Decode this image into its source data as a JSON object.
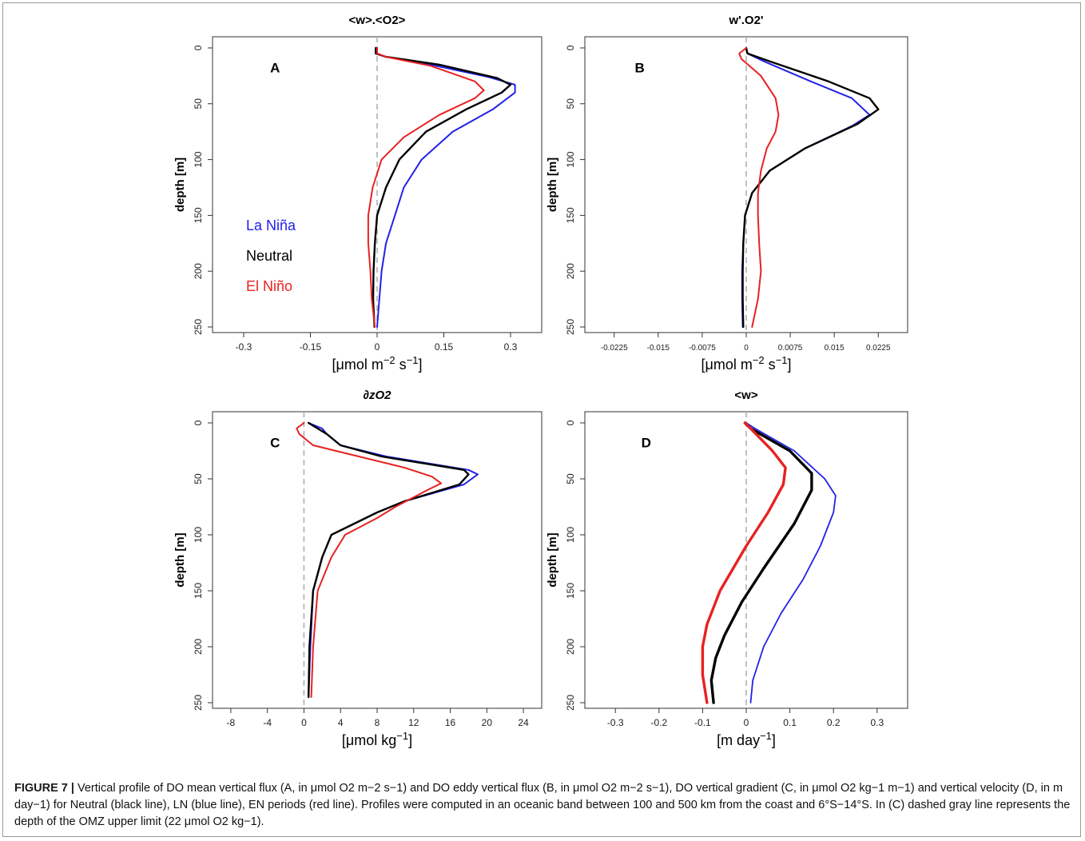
{
  "caption": {
    "label": "FIGURE 7 |",
    "text": "Vertical profile of DO mean vertical flux (A, in μmol O2 m−2 s−1) and DO eddy vertical flux (B, in μmol O2 m−2 s−1), DO vertical gradient (C, in μmol O2 kg−1 m−1) and vertical velocity (D, in m day−1) for Neutral (black line), LN (blue line), EN periods (red line). Profiles were computed in an oceanic band between 100 and 500 km from the coast and 6°S−14°S. In (C) dashed gray line represents the depth of the OMZ upper limit (22 μmol O2 kg−1)."
  },
  "colors": {
    "neutral": "#000000",
    "la_nina": "#2121e8",
    "el_nino": "#e82121",
    "zero_line": "#b0b0b0"
  },
  "chart_data": [
    {
      "type": "line",
      "panel": "A",
      "title": "<w>.<O2>",
      "xlabel": "[μmol m-2 s-1]",
      "ylabel": "depth [m]",
      "xlim": [
        -0.37,
        0.37
      ],
      "ylim": [
        255,
        -10
      ],
      "xticks": [
        -0.3,
        -0.15,
        0,
        0.15,
        0.3
      ],
      "xtick_labels": [
        "-0.3",
        "-0.15",
        "0",
        "0.15",
        "0.3"
      ],
      "yticks": [
        0,
        50,
        100,
        150,
        200,
        250
      ],
      "ytick_labels": [
        "0",
        "50",
        "100",
        "150",
        "200",
        "250"
      ],
      "legend": {
        "position": "lower-left",
        "entries": [
          "La Niña",
          "Neutral",
          "El Niño"
        ]
      },
      "series": [
        {
          "name": "La Niña",
          "color_key": "la_nina",
          "x": [
            0.0,
            0.0,
            0.02,
            0.12,
            0.25,
            0.31,
            0.31,
            0.26,
            0.17,
            0.1,
            0.06,
            0.04,
            0.02,
            0.01,
            0.005,
            0.0
          ],
          "y": [
            0,
            5,
            8,
            15,
            26,
            33,
            40,
            55,
            75,
            100,
            125,
            150,
            175,
            200,
            225,
            250
          ]
        },
        {
          "name": "Neutral",
          "color_key": "neutral",
          "x": [
            -0.003,
            -0.003,
            0.02,
            0.14,
            0.27,
            0.3,
            0.28,
            0.2,
            0.11,
            0.05,
            0.02,
            0.0,
            -0.005,
            -0.008,
            -0.009,
            -0.006
          ],
          "y": [
            0,
            5,
            8,
            15,
            27,
            33,
            40,
            55,
            75,
            100,
            125,
            150,
            175,
            200,
            225,
            250
          ]
        },
        {
          "name": "El Niño",
          "color_key": "el_nino",
          "x": [
            0.0,
            0.0,
            0.02,
            0.12,
            0.22,
            0.24,
            0.22,
            0.14,
            0.06,
            0.01,
            -0.01,
            -0.02,
            -0.02,
            -0.015,
            -0.012,
            -0.005
          ],
          "y": [
            0,
            5,
            8,
            16,
            30,
            38,
            45,
            60,
            80,
            100,
            125,
            150,
            175,
            200,
            225,
            250
          ]
        }
      ]
    },
    {
      "type": "line",
      "panel": "B",
      "title": "w'.O2'",
      "xlabel": "[μmol m-2 s-1]",
      "ylabel": "depth [m]",
      "xlim": [
        -0.0275,
        0.0275
      ],
      "ylim": [
        255,
        -10
      ],
      "xticks": [
        -0.0225,
        -0.015,
        -0.0075,
        0,
        0.0075,
        0.015,
        0.0225
      ],
      "xtick_labels": [
        "-0.0225",
        "-0.015",
        "-0.0075",
        "0",
        "0.0075",
        "0.015",
        "0.0225"
      ],
      "yticks": [
        0,
        50,
        100,
        150,
        200,
        250
      ],
      "ytick_labels": [
        "0",
        "50",
        "100",
        "150",
        "200",
        "250"
      ],
      "series": [
        {
          "name": "La Niña",
          "color_key": "la_nina",
          "x": [
            0.0,
            0.0002,
            0.003,
            0.011,
            0.018,
            0.021,
            0.018,
            0.01,
            0.004,
            0.001,
            -0.0002,
            -0.0005,
            -0.0007,
            -0.0007,
            -0.0006
          ],
          "y": [
            0,
            5,
            12,
            30,
            45,
            60,
            70,
            90,
            110,
            130,
            150,
            175,
            200,
            225,
            250
          ]
        },
        {
          "name": "Neutral",
          "color_key": "neutral",
          "x": [
            0.0,
            0.0002,
            0.004,
            0.014,
            0.021,
            0.0225,
            0.019,
            0.01,
            0.004,
            0.001,
            -0.0002,
            -0.0005,
            -0.0006,
            -0.0006,
            -0.0005
          ],
          "y": [
            0,
            5,
            12,
            30,
            45,
            55,
            68,
            90,
            110,
            130,
            150,
            175,
            200,
            225,
            250
          ]
        },
        {
          "name": "El Niño",
          "color_key": "el_nino",
          "x": [
            0.0,
            -0.0012,
            -0.0008,
            0.0025,
            0.005,
            0.0055,
            0.005,
            0.0035,
            0.0025,
            0.002,
            0.002,
            0.0022,
            0.0025,
            0.002,
            0.001
          ],
          "y": [
            0,
            5,
            10,
            25,
            45,
            60,
            75,
            90,
            110,
            130,
            150,
            175,
            200,
            225,
            250
          ]
        }
      ]
    },
    {
      "type": "line",
      "panel": "C",
      "title": "∂zO2",
      "xlabel": "[μmol kg-1]",
      "ylabel": "depth [m]",
      "xlim": [
        -10,
        26
      ],
      "ylim": [
        255,
        -10
      ],
      "xticks": [
        -8,
        -4,
        0,
        4,
        8,
        12,
        16,
        20,
        24
      ],
      "xtick_labels": [
        "-8",
        "-4",
        "0",
        "4",
        "8",
        "12",
        "16",
        "20",
        "24"
      ],
      "yticks": [
        0,
        50,
        100,
        150,
        200,
        250
      ],
      "ytick_labels": [
        "0",
        "50",
        "100",
        "150",
        "200",
        "250"
      ],
      "series": [
        {
          "name": "La Niña",
          "color_key": "la_nina",
          "x": [
            0.5,
            2.0,
            2.5,
            4.0,
            9.0,
            15.0,
            18.0,
            19.0,
            17.5,
            11.0,
            8.0,
            3.0,
            2.0,
            1.0,
            0.7,
            0.5
          ],
          "y": [
            0,
            5,
            10,
            20,
            30,
            38,
            42,
            46,
            55,
            70,
            80,
            100,
            120,
            150,
            200,
            245
          ]
        },
        {
          "name": "Neutral",
          "color_key": "neutral",
          "x": [
            0.5,
            1.5,
            2.5,
            4.0,
            8.5,
            14.5,
            17.5,
            18.0,
            17.0,
            11.0,
            8.0,
            3.0,
            2.0,
            1.0,
            0.6,
            0.5
          ],
          "y": [
            0,
            5,
            10,
            20,
            30,
            38,
            42,
            46,
            55,
            70,
            80,
            100,
            120,
            150,
            200,
            245
          ]
        },
        {
          "name": "El Niño",
          "color_key": "el_nino",
          "x": [
            0.0,
            -0.8,
            -0.5,
            1.0,
            6.0,
            11.0,
            14.0,
            15.0,
            13.5,
            10.0,
            8.0,
            4.5,
            3.0,
            1.5,
            1.0,
            0.8
          ],
          "y": [
            0,
            5,
            10,
            20,
            30,
            40,
            48,
            54,
            60,
            75,
            85,
            100,
            120,
            150,
            200,
            245
          ]
        }
      ]
    },
    {
      "type": "line",
      "panel": "D",
      "title": "<w>",
      "xlabel": "[m day-1]",
      "ylabel": "depth [m]",
      "xlim": [
        -0.37,
        0.37
      ],
      "ylim": [
        255,
        -10
      ],
      "xticks": [
        -0.3,
        -0.2,
        -0.1,
        0,
        0.1,
        0.2,
        0.3
      ],
      "xtick_labels": [
        "-0.3",
        "-0.2",
        "-0.1",
        "0",
        "0.1",
        "0.2",
        "0.3"
      ],
      "yticks": [
        0,
        50,
        100,
        150,
        200,
        250
      ],
      "ytick_labels": [
        "0",
        "50",
        "100",
        "150",
        "200",
        "250"
      ],
      "series": [
        {
          "name": "La Niña",
          "color_key": "la_nina",
          "x": [
            0.0,
            0.02,
            0.11,
            0.18,
            0.205,
            0.2,
            0.17,
            0.13,
            0.08,
            0.04,
            0.015,
            0.01
          ],
          "y": [
            0,
            5,
            25,
            50,
            65,
            80,
            110,
            140,
            170,
            200,
            230,
            250
          ]
        },
        {
          "name": "Neutral",
          "color_key": "neutral",
          "x": [
            -0.003,
            0.01,
            0.1,
            0.15,
            0.15,
            0.11,
            0.04,
            -0.01,
            -0.05,
            -0.07,
            -0.08,
            -0.075
          ],
          "y": [
            0,
            5,
            25,
            45,
            60,
            90,
            130,
            160,
            190,
            210,
            230,
            250
          ]
        },
        {
          "name": "El Niño",
          "color_key": "el_nino",
          "x": [
            -0.003,
            0.01,
            0.06,
            0.09,
            0.085,
            0.05,
            0.0,
            -0.06,
            -0.09,
            -0.1,
            -0.1,
            -0.09
          ],
          "y": [
            0,
            5,
            25,
            40,
            55,
            80,
            110,
            150,
            180,
            200,
            225,
            250
          ]
        }
      ]
    }
  ]
}
